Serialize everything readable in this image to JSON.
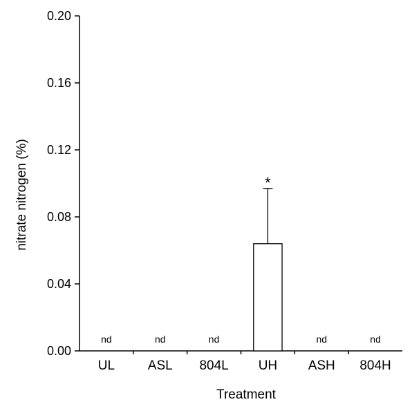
{
  "chart_data": {
    "type": "bar",
    "categories": [
      "UL",
      "ASL",
      "804L",
      "UH",
      "ASH",
      "804H"
    ],
    "values": [
      null,
      null,
      null,
      0.064,
      null,
      null
    ],
    "error_upper": [
      null,
      null,
      null,
      0.097,
      null,
      null
    ],
    "value_labels": [
      "nd",
      "nd",
      "nd",
      "",
      "nd",
      "nd"
    ],
    "significance": [
      "",
      "",
      "",
      "*",
      "",
      ""
    ],
    "xlabel": "Treatment",
    "ylabel": "nitrate nitrogen (%)",
    "ylim": [
      0,
      0.2
    ],
    "yticks": [
      0.0,
      0.04,
      0.08,
      0.12,
      0.16,
      0.2
    ],
    "ytick_labels": [
      "0.00",
      "0.04",
      "0.08",
      "0.12",
      "0.16",
      "0.20"
    ],
    "grid": false,
    "bar_fill": "#ffffff",
    "bar_stroke": "#000000"
  }
}
